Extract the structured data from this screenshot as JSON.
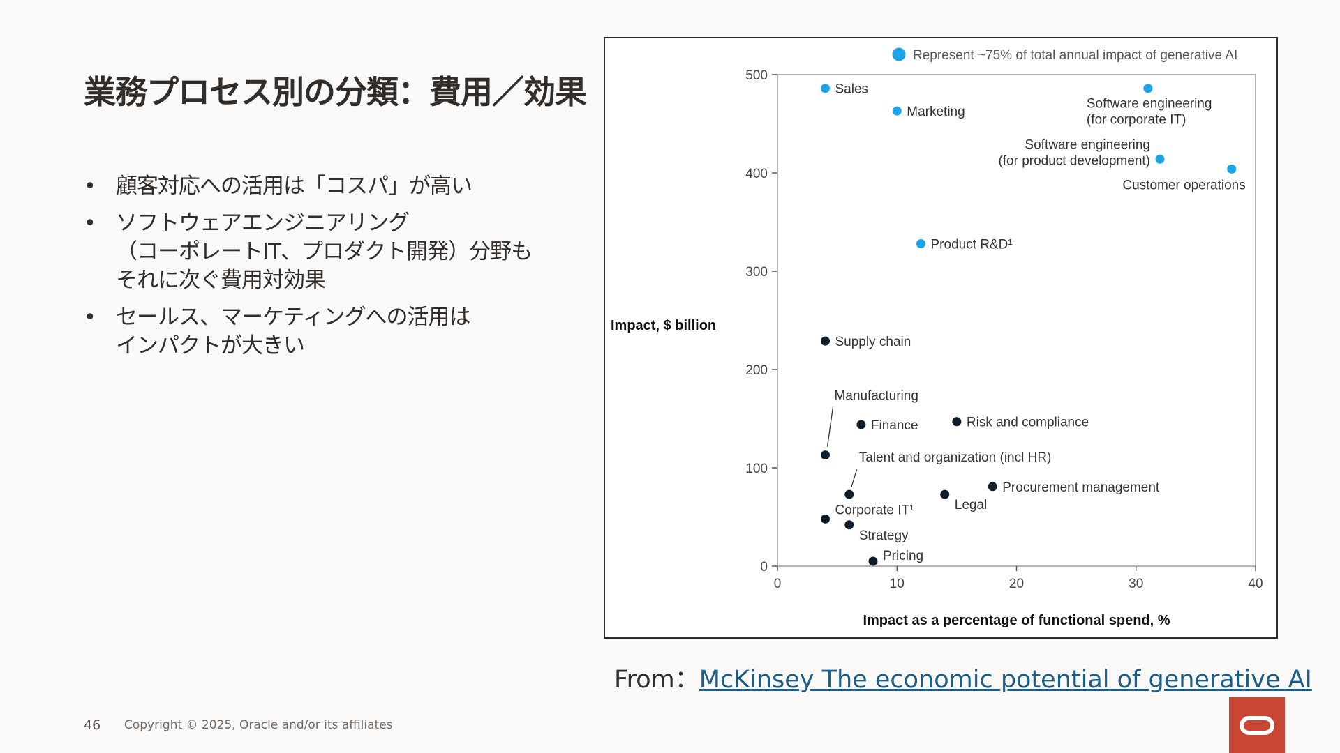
{
  "slide": {
    "title": "業務プロセス別の分類：費用／効果",
    "bullets": [
      [
        "顧客対応への活用は「コスパ」が高い"
      ],
      [
        "ソフトウェアエンジニアリング",
        "（コーポレートIT、プロダクト開発）分野も",
        "それに次ぐ費用対効果"
      ],
      [
        "セールス、マーケティングへの活用は",
        "インパクトが大きい"
      ]
    ],
    "source_prefix": "From：",
    "source_link_text": "McKinsey The economic potential of generative AI",
    "page_number": "46",
    "copyright": "Copyright © 2025, Oracle and/or its affiliates"
  },
  "chart_data": {
    "type": "scatter",
    "xlabel": "Impact as a percentage of functional spend, %",
    "ylabel": "Impact, $ billion",
    "xlim": [
      0,
      40
    ],
    "ylim": [
      0,
      500
    ],
    "x_ticks": [
      "0",
      "10",
      "20",
      "30",
      "40"
    ],
    "y_ticks": [
      "0",
      "100",
      "200",
      "300",
      "400",
      "500"
    ],
    "grid": false,
    "legend": {
      "placement": "top",
      "label": "Represent ~75% of total annual impact of generative AI",
      "color": "#1ba4e8"
    },
    "colors": {
      "highlight": "#1ba4e8",
      "other": "#0f1d2b"
    },
    "points": [
      {
        "label": [
          "Sales"
        ],
        "x": 4,
        "y": 486,
        "group": "highlight"
      },
      {
        "label": [
          "Marketing"
        ],
        "x": 10,
        "y": 463,
        "group": "highlight"
      },
      {
        "label": [
          "Software engineering",
          "(for corporate IT)"
        ],
        "x": 31,
        "y": 486,
        "group": "highlight"
      },
      {
        "label": [
          "Software engineering",
          "(for product development)"
        ],
        "x": 32,
        "y": 414,
        "group": "highlight"
      },
      {
        "label": [
          "Customer operations"
        ],
        "x": 38,
        "y": 404,
        "group": "highlight"
      },
      {
        "label": [
          "Product R&D¹"
        ],
        "x": 12,
        "y": 328,
        "group": "highlight"
      },
      {
        "label": [
          "Supply chain"
        ],
        "x": 4,
        "y": 229,
        "group": "other"
      },
      {
        "label": [
          "Manufacturing"
        ],
        "x": 4,
        "y": 113,
        "group": "other"
      },
      {
        "label": [
          "Finance"
        ],
        "x": 7,
        "y": 144,
        "group": "other"
      },
      {
        "label": [
          "Risk and compliance"
        ],
        "x": 15,
        "y": 147,
        "group": "other"
      },
      {
        "label": [
          "Talent and organization (incl HR)"
        ],
        "x": 6,
        "y": 73,
        "group": "other"
      },
      {
        "label": [
          "Procurement management"
        ],
        "x": 18,
        "y": 81,
        "group": "other"
      },
      {
        "label": [
          "Legal"
        ],
        "x": 14,
        "y": 73,
        "group": "other"
      },
      {
        "label": [
          "Corporate IT¹"
        ],
        "x": 4,
        "y": 48,
        "group": "other"
      },
      {
        "label": [
          "Strategy"
        ],
        "x": 6,
        "y": 42,
        "group": "other"
      },
      {
        "label": [
          "Pricing"
        ],
        "x": 8,
        "y": 5,
        "group": "other"
      }
    ]
  }
}
